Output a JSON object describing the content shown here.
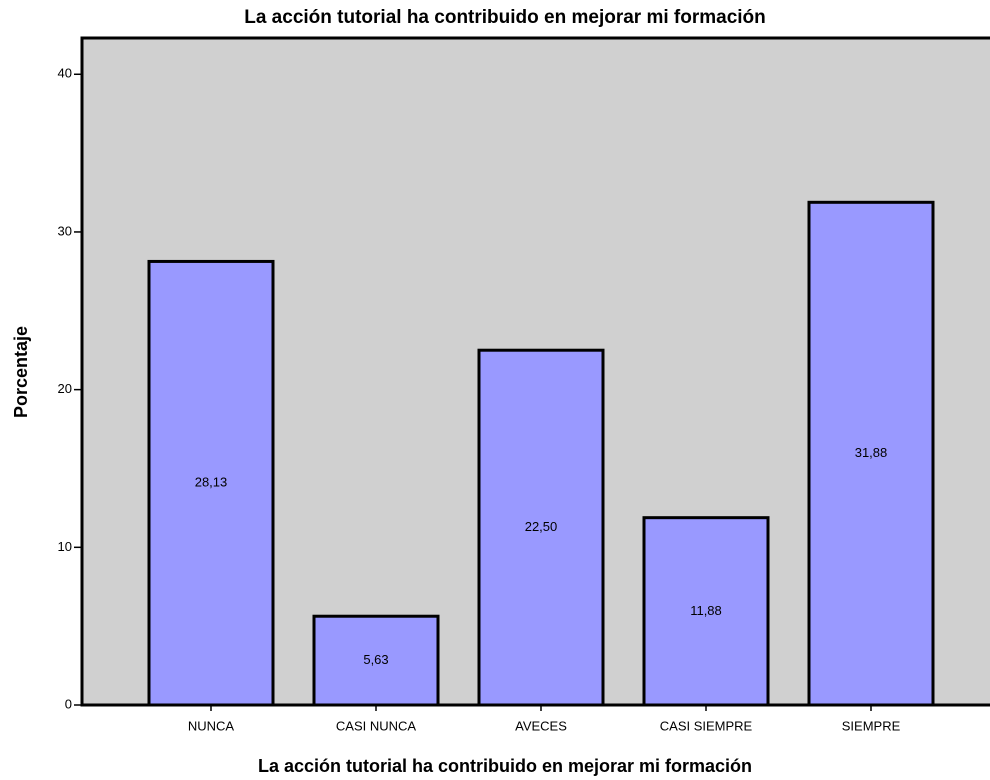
{
  "chart_data": {
    "type": "bar",
    "title": "La acción tutorial ha contribuido en mejorar mi formación",
    "x_label": "La acción tutorial ha contribuido en mejorar mi formación",
    "y_label": "Porcentaje",
    "categories": [
      "NUNCA",
      "CASI NUNCA",
      "AVECES",
      "CASI SIEMPRE",
      "SIEMPRE"
    ],
    "values": [
      28.13,
      5.63,
      22.5,
      11.88,
      31.88
    ],
    "value_labels": [
      "28,13",
      "5,63",
      "22,50",
      "11,88",
      "31,88"
    ],
    "color": "#9999ff",
    "ylim": [
      0,
      42.3
    ],
    "yticks": [
      0,
      10,
      20,
      30,
      40
    ],
    "grid": false
  }
}
